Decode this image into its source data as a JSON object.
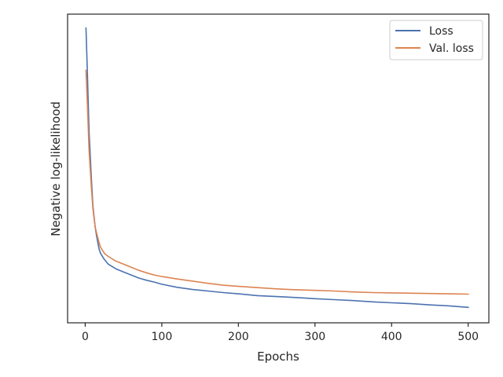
{
  "chart_data": {
    "type": "line",
    "title": "",
    "xlabel": "Epochs",
    "ylabel": "Negative log-likelihood",
    "xlim": [
      -23,
      527
    ],
    "ylim": [
      0,
      1
    ],
    "x_ticks": [
      0,
      100,
      200,
      300,
      400,
      500
    ],
    "y_ticks": [],
    "grid": false,
    "legend_position": "top-right",
    "series": [
      {
        "name": "Loss",
        "color": "#4c72b0",
        "x": [
          1,
          3,
          5,
          8,
          10,
          13,
          15,
          18,
          20,
          25,
          30,
          40,
          50,
          60,
          70,
          80,
          90,
          100,
          120,
          140,
          160,
          180,
          200,
          225,
          250,
          275,
          300,
          325,
          350,
          375,
          400,
          425,
          450,
          475,
          501
        ],
        "values": [
          0.957,
          0.8,
          0.62,
          0.47,
          0.38,
          0.31,
          0.28,
          0.24,
          0.225,
          0.205,
          0.19,
          0.175,
          0.165,
          0.155,
          0.145,
          0.138,
          0.132,
          0.125,
          0.115,
          0.108,
          0.103,
          0.098,
          0.094,
          0.088,
          0.085,
          0.082,
          0.078,
          0.075,
          0.072,
          0.068,
          0.065,
          0.062,
          0.058,
          0.055,
          0.05
        ]
      },
      {
        "name": "Val. loss",
        "color": "#dd8452",
        "x": [
          1,
          3,
          5,
          8,
          10,
          13,
          15,
          18,
          20,
          25,
          30,
          40,
          50,
          60,
          70,
          80,
          90,
          100,
          120,
          140,
          160,
          180,
          200,
          225,
          250,
          275,
          300,
          325,
          350,
          375,
          400,
          425,
          450,
          475,
          501
        ],
        "values": [
          0.82,
          0.7,
          0.56,
          0.44,
          0.37,
          0.31,
          0.29,
          0.26,
          0.245,
          0.225,
          0.215,
          0.2,
          0.19,
          0.18,
          0.17,
          0.162,
          0.155,
          0.15,
          0.142,
          0.135,
          0.128,
          0.122,
          0.118,
          0.114,
          0.11,
          0.107,
          0.105,
          0.103,
          0.1,
          0.098,
          0.097,
          0.096,
          0.095,
          0.094,
          0.093
        ]
      }
    ]
  }
}
